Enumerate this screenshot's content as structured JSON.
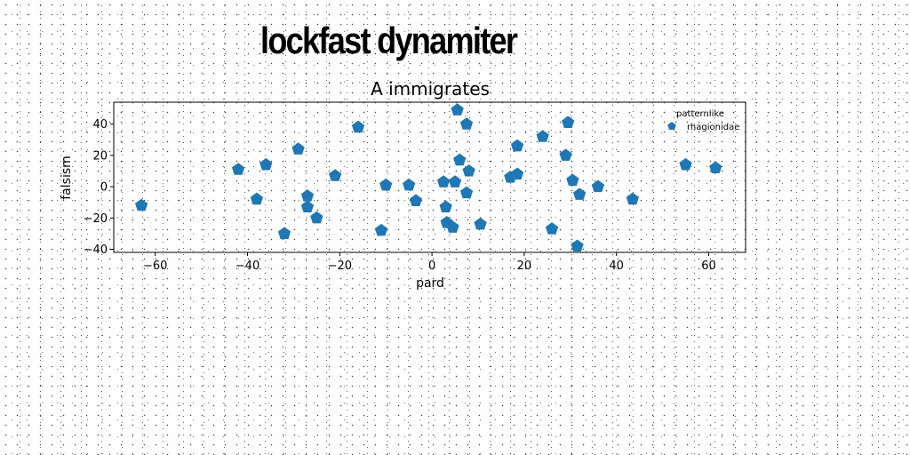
{
  "page_title": "lockfast dynamiter",
  "chart_data": {
    "type": "scatter",
    "title": "A immigrates",
    "xlabel": "pard",
    "ylabel": "falsism",
    "xlim": [
      -69,
      68
    ],
    "ylim": [
      -42,
      54
    ],
    "xticks": [
      -60,
      -40,
      -20,
      0,
      20,
      40,
      60
    ],
    "yticks": [
      -40,
      -20,
      0,
      20,
      40
    ],
    "grid": false,
    "legend": {
      "title": "patternlike",
      "placement": "top-right"
    },
    "series": [
      {
        "name": "rhagionidae",
        "color": "#1f77b4",
        "marker": "pentagon",
        "x": [
          -63,
          -42,
          -38,
          -36,
          -32,
          -29,
          -27,
          -27,
          -25,
          -21,
          -16,
          -11,
          -10,
          -5,
          -3.5,
          2.5,
          3,
          3.2,
          4.5,
          5,
          5.5,
          6,
          7.5,
          7.5,
          8,
          10.5,
          17,
          18.5,
          18.5,
          24,
          26,
          29,
          29.5,
          30.5,
          31.5,
          32,
          36,
          43.5,
          55,
          61.5
        ],
        "y": [
          -12,
          11,
          -8,
          14,
          -30,
          24,
          -6,
          -13,
          -20,
          7,
          38,
          -28,
          1,
          1,
          -9,
          3,
          -13,
          -23,
          -26,
          3,
          49,
          17,
          40,
          -4,
          10,
          -24,
          6,
          8,
          26,
          32,
          -27,
          20,
          41,
          4,
          -38,
          -5,
          0,
          -8,
          14,
          12
        ]
      }
    ]
  }
}
